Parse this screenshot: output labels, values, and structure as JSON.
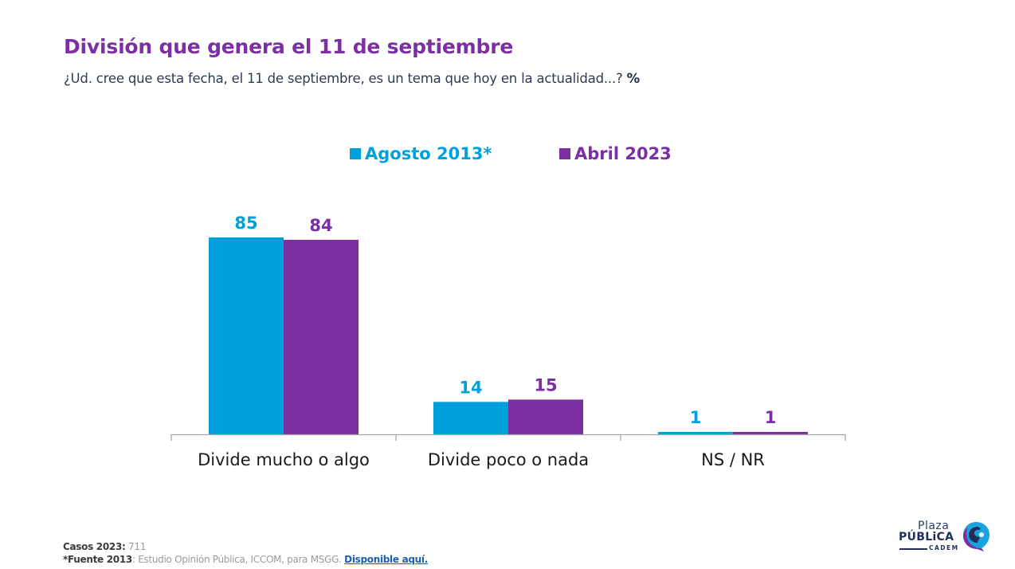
{
  "header": {
    "title": "División que genera el 11 de septiembre",
    "subtitle": "¿Ud. cree que esta fecha, el 11 de septiembre, es un tema que hoy en la actualidad...?",
    "unit_marker": "%"
  },
  "colors": {
    "title": "#7b2fa3",
    "series_2013": "#00a0dc",
    "series_2023": "#7b2fa3",
    "axis": "#a6a6a6",
    "category_label": "#1a1a1a"
  },
  "chart_data": {
    "type": "bar",
    "title": "División que genera el 11 de septiembre",
    "subtitle": "¿Ud. cree que esta fecha, el 11 de septiembre, es un tema que hoy en la actualidad...? %",
    "categories": [
      "Divide mucho o algo",
      "Divide poco o nada",
      "NS / NR"
    ],
    "series": [
      {
        "name": "Agosto 2013*",
        "color": "#00a0dc",
        "values": [
          85,
          14,
          1
        ]
      },
      {
        "name": "Abril 2023",
        "color": "#7b2fa3",
        "values": [
          84,
          15,
          1
        ]
      }
    ],
    "xlabel": "",
    "ylabel": "",
    "ylim": [
      0,
      85
    ],
    "grid": false,
    "legend_position": "top-center",
    "data_labels": true
  },
  "footer": {
    "cases_label": "Casos 2023:",
    "cases_value": "711",
    "source_label": "*Fuente 2013",
    "source_text": ": Estudio Opinión Pública, ICCOM, para MSGG.",
    "link_text": "Disponible aquí."
  },
  "logo": {
    "line1": "Plaza",
    "line2": "PÚBLiCA",
    "line3": "CADEM"
  }
}
